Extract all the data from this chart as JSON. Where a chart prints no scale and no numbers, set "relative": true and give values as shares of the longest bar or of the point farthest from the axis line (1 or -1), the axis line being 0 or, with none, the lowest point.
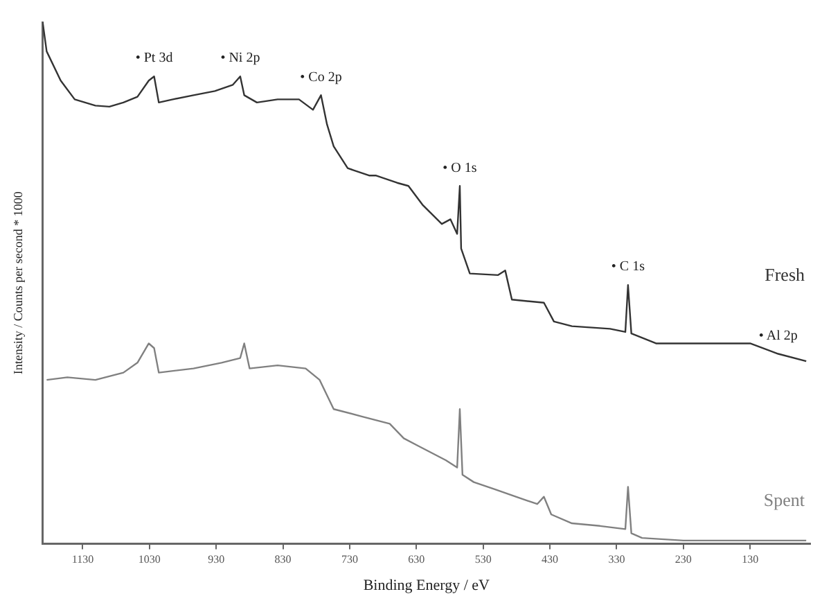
{
  "chart_data": {
    "type": "line",
    "xlabel": "Binding Energy / eV",
    "ylabel": "Intensity / Counts per second * 1000",
    "relative": true,
    "xlim": [
      1190,
      40
    ],
    "xticks": [
      1130,
      1030,
      930,
      830,
      730,
      630,
      530,
      430,
      330,
      230,
      130
    ],
    "grid": false,
    "legend": false,
    "marker": "none",
    "line_style": "solid",
    "series": [
      {
        "name": "Fresh",
        "color": "#333333",
        "x": [
          1190,
          1184,
          1163,
          1142,
          1111,
          1090,
          1069,
          1048,
          1031,
          1023,
          1016,
          995,
          964,
          932,
          905,
          894,
          888,
          869,
          838,
          806,
          785,
          773,
          764,
          754,
          733,
          701,
          691,
          659,
          642,
          621,
          592,
          579,
          569,
          565,
          563,
          550,
          508,
          497,
          487,
          439,
          424,
          397,
          340,
          317,
          313,
          308,
          271,
          130,
          88,
          46
        ],
        "values": [
          1.0,
          0.944,
          0.888,
          0.852,
          0.84,
          0.838,
          0.846,
          0.857,
          0.888,
          0.896,
          0.846,
          0.852,
          0.86,
          0.868,
          0.88,
          0.896,
          0.86,
          0.846,
          0.852,
          0.852,
          0.832,
          0.86,
          0.804,
          0.762,
          0.72,
          0.706,
          0.706,
          0.692,
          0.686,
          0.65,
          0.613,
          0.622,
          0.594,
          0.686,
          0.566,
          0.518,
          0.515,
          0.524,
          0.468,
          0.462,
          0.426,
          0.417,
          0.412,
          0.406,
          0.496,
          0.403,
          0.384,
          0.384,
          0.364,
          0.35
        ]
      },
      {
        "name": "Spent",
        "color": "#808080",
        "x": [
          1184,
          1153,
          1111,
          1069,
          1048,
          1031,
          1023,
          1016,
          964,
          922,
          894,
          888,
          880,
          838,
          796,
          775,
          754,
          712,
          670,
          649,
          628,
          586,
          569,
          565,
          561,
          544,
          512,
          481,
          449,
          439,
          428,
          397,
          355,
          317,
          313,
          308,
          292,
          230,
          46
        ],
        "values": [
          0.314,
          0.319,
          0.314,
          0.328,
          0.347,
          0.384,
          0.375,
          0.328,
          0.336,
          0.347,
          0.356,
          0.384,
          0.336,
          0.342,
          0.336,
          0.314,
          0.258,
          0.244,
          0.23,
          0.202,
          0.188,
          0.16,
          0.146,
          0.258,
          0.132,
          0.118,
          0.104,
          0.09,
          0.076,
          0.09,
          0.056,
          0.039,
          0.034,
          0.028,
          0.109,
          0.02,
          0.011,
          0.006,
          0.006
        ]
      }
    ],
    "annotations": [
      {
        "text": "• Pt 3d",
        "x": 1023,
        "y": 0.896
      },
      {
        "text": "• Ni 2p",
        "x": 894,
        "y": 0.896
      },
      {
        "text": "• Co 2p",
        "x": 773,
        "y": 0.86
      },
      {
        "text": "• O 1s",
        "x": 565,
        "y": 0.686
      },
      {
        "text": "• C 1s",
        "x": 313,
        "y": 0.496
      },
      {
        "text": "• Al 2p",
        "x": 88,
        "y": 0.364
      }
    ]
  }
}
